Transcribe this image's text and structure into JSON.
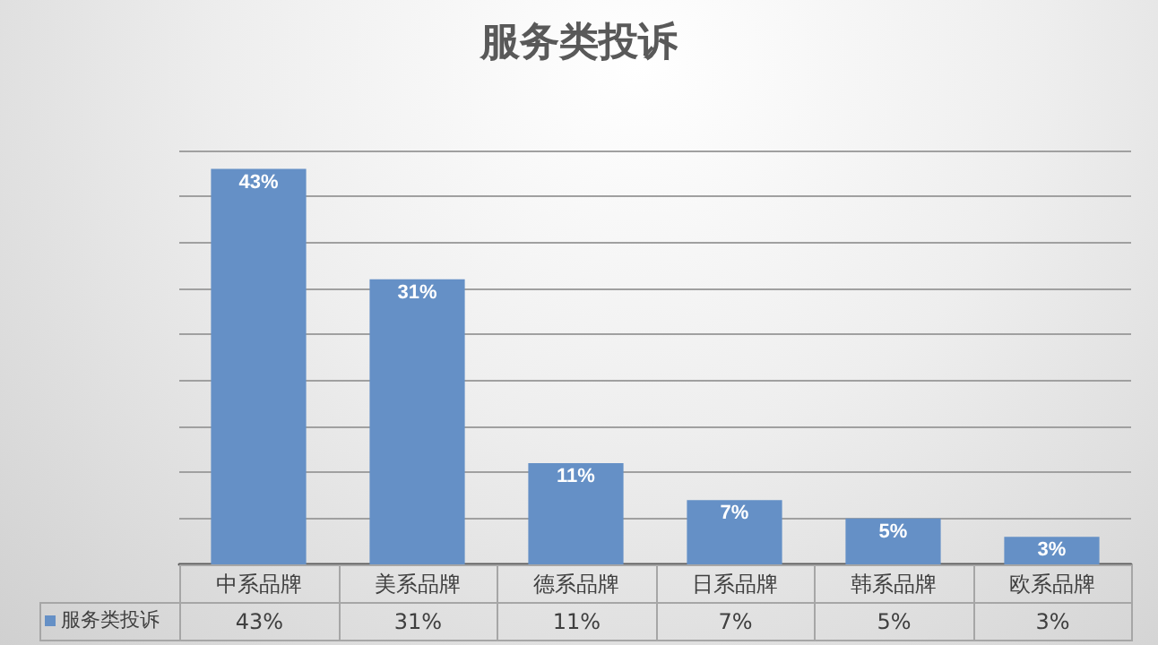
{
  "chart_data": {
    "type": "bar",
    "title": "服务类投诉",
    "categories": [
      "中系品牌",
      "美系品牌",
      "德系品牌",
      "日系品牌",
      "韩系品牌",
      "欧系品牌"
    ],
    "series": [
      {
        "name": "服务类投诉",
        "color": "#6590c6",
        "values": [
          43,
          31,
          11,
          7,
          5,
          3
        ],
        "value_labels": [
          "43%",
          "31%",
          "11%",
          "7%",
          "5%",
          "3%"
        ]
      }
    ],
    "ylim": [
      0,
      45
    ],
    "yticks": [
      {
        "value": 0,
        "label": null
      },
      {
        "value": 5,
        "label": null
      },
      {
        "value": 10,
        "label": null
      },
      {
        "value": 15,
        "label": null
      },
      {
        "value": 20,
        "label": null
      },
      {
        "value": 25,
        "label": null
      },
      {
        "value": 30,
        "label": null
      },
      {
        "value": 35,
        "label": null
      },
      {
        "value": 40,
        "label": null
      },
      {
        "value": 45,
        "label": null
      }
    ],
    "grid": "y",
    "legend": "bottom left",
    "tick_labels": "x"
  }
}
